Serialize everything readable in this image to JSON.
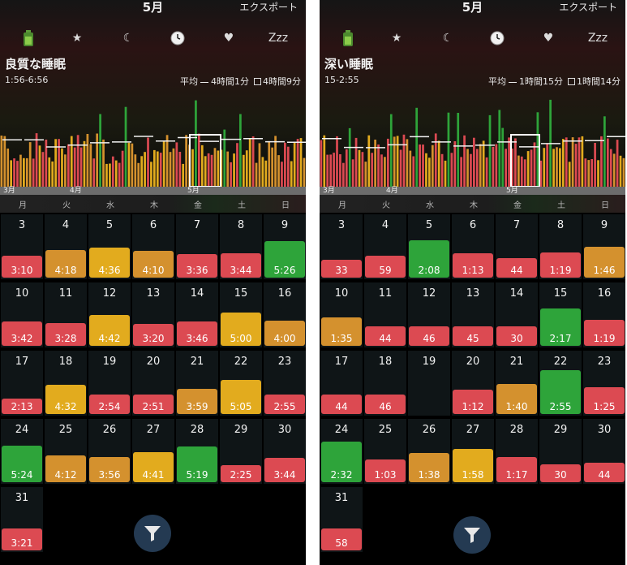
{
  "colors": {
    "green": "#2ea43a",
    "orange": "#d4912e",
    "yellow": "#e2ab1e",
    "red": "#dc4a52"
  },
  "panels": [
    {
      "month_title": "5月",
      "export_label": "エクスポート",
      "tabs": [
        {
          "name": "battery-icon",
          "label": "",
          "active": false
        },
        {
          "name": "star-icon",
          "label": "★",
          "active": true
        },
        {
          "name": "moon-icon",
          "label": "☾",
          "active": false
        },
        {
          "name": "clock-icon",
          "label": "",
          "active": false
        },
        {
          "name": "heart-icon",
          "label": "♥",
          "active": false
        },
        {
          "name": "zzz-tab",
          "label": "Zzz",
          "active": false
        }
      ],
      "metric_title": "良質な睡眠",
      "metric_range": "1:56-6:56",
      "avg_label": "平均",
      "avg_value": "4時間1分",
      "alt_value": "4時間9分",
      "chart_months": [
        "3月",
        "4月",
        "5月"
      ],
      "weekdays": [
        "月",
        "火",
        "水",
        "木",
        "金",
        "土",
        "日"
      ],
      "days": [
        {
          "day": "3",
          "value": "3:10",
          "color": "red",
          "level": 0.34
        },
        {
          "day": "4",
          "value": "4:18",
          "color": "orange",
          "level": 0.42
        },
        {
          "day": "5",
          "value": "4:36",
          "color": "yellow",
          "level": 0.46
        },
        {
          "day": "6",
          "value": "4:10",
          "color": "orange",
          "level": 0.41
        },
        {
          "day": "7",
          "value": "3:36",
          "color": "red",
          "level": 0.36
        },
        {
          "day": "8",
          "value": "3:44",
          "color": "red",
          "level": 0.37
        },
        {
          "day": "9",
          "value": "5:26",
          "color": "green",
          "level": 0.56
        },
        {
          "day": "10",
          "value": "3:42",
          "color": "red",
          "level": 0.37
        },
        {
          "day": "11",
          "value": "3:28",
          "color": "red",
          "level": 0.35
        },
        {
          "day": "12",
          "value": "4:42",
          "color": "yellow",
          "level": 0.47
        },
        {
          "day": "13",
          "value": "3:20",
          "color": "red",
          "level": 0.34
        },
        {
          "day": "14",
          "value": "3:46",
          "color": "red",
          "level": 0.37
        },
        {
          "day": "15",
          "value": "5:00",
          "color": "yellow",
          "level": 0.51
        },
        {
          "day": "16",
          "value": "4:00",
          "color": "orange",
          "level": 0.39
        },
        {
          "day": "17",
          "value": "2:13",
          "color": "red",
          "level": 0.24
        },
        {
          "day": "18",
          "value": "4:32",
          "color": "yellow",
          "level": 0.45
        },
        {
          "day": "19",
          "value": "2:54",
          "color": "red",
          "level": 0.3
        },
        {
          "day": "20",
          "value": "2:51",
          "color": "red",
          "level": 0.3
        },
        {
          "day": "21",
          "value": "3:59",
          "color": "orange",
          "level": 0.39
        },
        {
          "day": "22",
          "value": "5:05",
          "color": "yellow",
          "level": 0.52
        },
        {
          "day": "23",
          "value": "2:55",
          "color": "red",
          "level": 0.3
        },
        {
          "day": "24",
          "value": "5:24",
          "color": "green",
          "level": 0.56
        },
        {
          "day": "25",
          "value": "4:12",
          "color": "orange",
          "level": 0.41
        },
        {
          "day": "26",
          "value": "3:56",
          "color": "orange",
          "level": 0.39
        },
        {
          "day": "27",
          "value": "4:41",
          "color": "yellow",
          "level": 0.46
        },
        {
          "day": "28",
          "value": "5:19",
          "color": "green",
          "level": 0.55
        },
        {
          "day": "29",
          "value": "2:25",
          "color": "red",
          "level": 0.26
        },
        {
          "day": "30",
          "value": "3:44",
          "color": "red",
          "level": 0.37
        },
        {
          "day": "31",
          "value": "3:21",
          "color": "red",
          "level": 0.34
        }
      ]
    },
    {
      "month_title": "5月",
      "export_label": "エクスポート",
      "tabs": [
        {
          "name": "battery-icon",
          "label": "",
          "active": false
        },
        {
          "name": "star-icon",
          "label": "★",
          "active": false
        },
        {
          "name": "moon-icon",
          "label": "☾",
          "active": false
        },
        {
          "name": "clock-icon",
          "label": "",
          "active": false
        },
        {
          "name": "heart-icon",
          "label": "♥",
          "active": false
        },
        {
          "name": "zzz-tab",
          "label": "Zzz",
          "active": true
        }
      ],
      "metric_title": "深い睡眠",
      "metric_range": "15-2:55",
      "avg_label": "平均",
      "avg_value": "1時間15分",
      "alt_value": "1時間14分",
      "chart_months": [
        "3月",
        "4月",
        "5月"
      ],
      "weekdays": [
        "月",
        "火",
        "水",
        "木",
        "金",
        "土",
        "日"
      ],
      "days": [
        {
          "day": "3",
          "value": "33",
          "color": "red",
          "level": 0.28
        },
        {
          "day": "4",
          "value": "59",
          "color": "red",
          "level": 0.34
        },
        {
          "day": "5",
          "value": "2:08",
          "color": "green",
          "level": 0.58
        },
        {
          "day": "6",
          "value": "1:13",
          "color": "red",
          "level": 0.38
        },
        {
          "day": "7",
          "value": "44",
          "color": "red",
          "level": 0.3
        },
        {
          "day": "8",
          "value": "1:19",
          "color": "red",
          "level": 0.39
        },
        {
          "day": "9",
          "value": "1:46",
          "color": "orange",
          "level": 0.47
        },
        {
          "day": "10",
          "value": "1:35",
          "color": "orange",
          "level": 0.44
        },
        {
          "day": "11",
          "value": "44",
          "color": "red",
          "level": 0.3
        },
        {
          "day": "12",
          "value": "46",
          "color": "red",
          "level": 0.3
        },
        {
          "day": "13",
          "value": "45",
          "color": "red",
          "level": 0.3
        },
        {
          "day": "14",
          "value": "30",
          "color": "red",
          "level": 0.3
        },
        {
          "day": "15",
          "value": "2:17",
          "color": "green",
          "level": 0.58
        },
        {
          "day": "16",
          "value": "1:19",
          "color": "red",
          "level": 0.4
        },
        {
          "day": "17",
          "value": "44",
          "color": "red",
          "level": 0.3
        },
        {
          "day": "18",
          "value": "46",
          "color": "red",
          "level": 0.3
        },
        {
          "day": "19",
          "value": "",
          "color": "none",
          "level": 0
        },
        {
          "day": "20",
          "value": "1:12",
          "color": "red",
          "level": 0.38
        },
        {
          "day": "21",
          "value": "1:40",
          "color": "orange",
          "level": 0.46
        },
        {
          "day": "22",
          "value": "2:55",
          "color": "green",
          "level": 0.68
        },
        {
          "day": "23",
          "value": "1:25",
          "color": "red",
          "level": 0.41
        },
        {
          "day": "24",
          "value": "2:32",
          "color": "green",
          "level": 0.62
        },
        {
          "day": "25",
          "value": "1:03",
          "color": "red",
          "level": 0.35
        },
        {
          "day": "26",
          "value": "1:38",
          "color": "orange",
          "level": 0.45
        },
        {
          "day": "27",
          "value": "1:58",
          "color": "yellow",
          "level": 0.51
        },
        {
          "day": "28",
          "value": "1:17",
          "color": "red",
          "level": 0.39
        },
        {
          "day": "29",
          "value": "30",
          "color": "red",
          "level": 0.27
        },
        {
          "day": "30",
          "value": "44",
          "color": "red",
          "level": 0.3
        },
        {
          "day": "31",
          "value": "58",
          "color": "red",
          "level": 0.34
        }
      ]
    }
  ]
}
